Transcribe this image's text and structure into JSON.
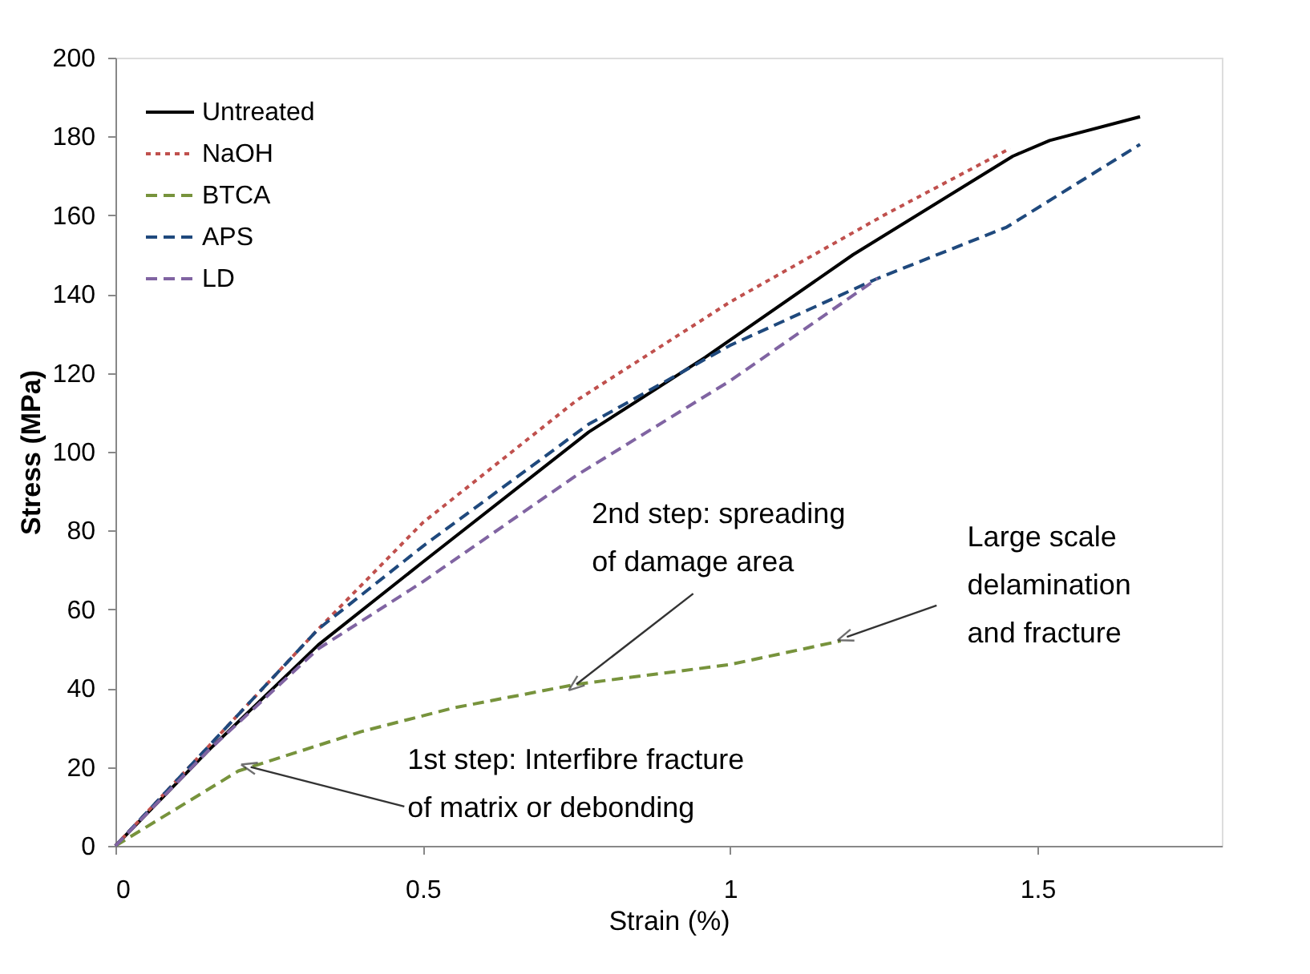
{
  "chart_data": {
    "type": "line",
    "xlabel": "Strain (%)",
    "ylabel": "Stress (MPa)",
    "xlim": [
      0,
      1.8
    ],
    "xticks": [
      0,
      0.5,
      1,
      1.5
    ],
    "ylim": [
      0,
      200
    ],
    "yticks": [
      0,
      20,
      40,
      60,
      80,
      100,
      120,
      140,
      160,
      180,
      200
    ],
    "grid": false,
    "legend": "top left",
    "marker": "none",
    "series": [
      {
        "name": "Untreated",
        "color": "#000000",
        "line_style": "solid",
        "x": [
          0,
          0.15,
          0.33,
          0.5,
          0.77,
          0.96,
          1.2,
          1.46,
          1.52,
          1.667
        ],
        "values": [
          0,
          24,
          51,
          72,
          105,
          124,
          150,
          175,
          179,
          185
        ]
      },
      {
        "name": "NaOH",
        "color": "#c0504d",
        "line_style": "dotted",
        "x": [
          0,
          0.15,
          0.33,
          0.5,
          0.75,
          1.0,
          1.25,
          1.456
        ],
        "values": [
          0,
          25,
          55,
          82,
          113,
          138,
          160,
          177
        ]
      },
      {
        "name": "BTCA",
        "color": "#77933c",
        "line_style": "dashed",
        "x": [
          0,
          0.2,
          0.4,
          0.55,
          0.75,
          1.0,
          1.18
        ],
        "values": [
          0,
          19,
          29,
          35,
          41,
          46,
          52
        ]
      },
      {
        "name": "APS",
        "color": "#1f497d",
        "line_style": "dashed",
        "x": [
          0,
          0.15,
          0.33,
          0.5,
          0.77,
          1.0,
          1.24,
          1.45,
          1.667
        ],
        "values": [
          0,
          25,
          55,
          76,
          107,
          127,
          144,
          157,
          178
        ]
      },
      {
        "name": "LD",
        "color": "#8064a2",
        "line_style": "dashed",
        "x": [
          0,
          0.15,
          0.33,
          0.5,
          0.75,
          1.0,
          1.24
        ],
        "values": [
          0,
          24,
          50,
          67,
          94,
          118,
          144
        ]
      }
    ],
    "annotations": [
      {
        "text": "1st step: Interfibre fracture\nof matrix or debonding",
        "x": 0.22,
        "y": 20
      },
      {
        "text": "2nd step: spreading\nof damage area",
        "x": 0.75,
        "y": 41
      },
      {
        "text": "Large scale\ndelamination\nand fracture",
        "x": 1.19,
        "y": 53
      }
    ]
  }
}
